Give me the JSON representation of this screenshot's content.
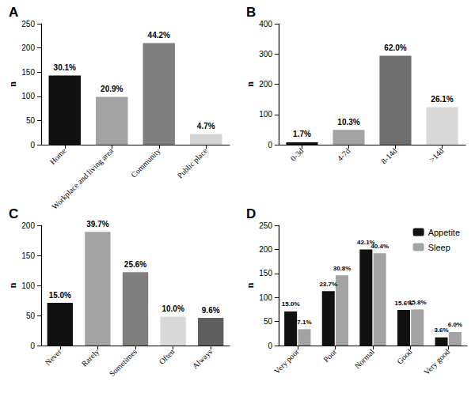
{
  "chart_data": [
    {
      "type": "bar",
      "title": "A",
      "y_label": "n",
      "categories": [
        "Home",
        "Workplace and living area",
        "Community",
        "Public place"
      ],
      "values": [
        143,
        99,
        210,
        22
      ],
      "percent_labels": [
        "30.1%",
        "20.9%",
        "44.2%",
        "4.7%"
      ],
      "colors": [
        "#111111",
        "#a3a3a3",
        "#7f7f7f",
        "#d4d4d4"
      ],
      "ylim": [
        0,
        250
      ],
      "yticks": [
        0,
        50,
        100,
        150,
        200,
        250
      ],
      "grid": false
    },
    {
      "type": "bar",
      "title": "B",
      "y_label": "n",
      "categories": [
        "0-3d",
        "4-7d",
        "8-14d",
        ">14d"
      ],
      "values": [
        8,
        49,
        294,
        124
      ],
      "percent_labels": [
        "1.7%",
        "10.3%",
        "62.0%",
        "26.1%"
      ],
      "colors": [
        "#111111",
        "#a3a3a3",
        "#6f6f6f",
        "#d9d9d9"
      ],
      "ylim": [
        0,
        400
      ],
      "yticks": [
        0,
        100,
        200,
        300,
        400
      ],
      "grid": false
    },
    {
      "type": "bar",
      "title": "C",
      "y_label": "n",
      "categories": [
        "Never",
        "Rarely",
        "Sometimes",
        "Often",
        "Always"
      ],
      "values": [
        71,
        189,
        122,
        48,
        46
      ],
      "percent_labels": [
        "15.0%",
        "39.7%",
        "25.6%",
        "10.0%",
        "9.6%"
      ],
      "colors": [
        "#111111",
        "#a3a3a3",
        "#7f7f7f",
        "#d9d9d9",
        "#5f5f5f"
      ],
      "ylim": [
        0,
        200
      ],
      "yticks": [
        0,
        50,
        100,
        150,
        200
      ],
      "grid": false
    },
    {
      "type": "bar",
      "title": "D",
      "y_label": "n",
      "categories": [
        "Very poor",
        "Poor",
        "Normal",
        "Good",
        "Very good"
      ],
      "series": [
        {
          "name": "Appetite",
          "color": "#111111",
          "values": [
            71,
            113,
            200,
            74,
            17
          ],
          "percent_labels": [
            "15.0%",
            "23.7%",
            "42.1%",
            "15.6%",
            "3.6%"
          ]
        },
        {
          "name": "Sleep",
          "color": "#a3a3a3",
          "values": [
            34,
            146,
            192,
            75,
            28
          ],
          "percent_labels": [
            "7.1%",
            "30.8%",
            "40.4%",
            "15.8%",
            "6.0%"
          ]
        }
      ],
      "ylim": [
        0,
        250
      ],
      "yticks": [
        0,
        50,
        100,
        150,
        200,
        250
      ],
      "grid": false,
      "legend": "upper right"
    }
  ]
}
